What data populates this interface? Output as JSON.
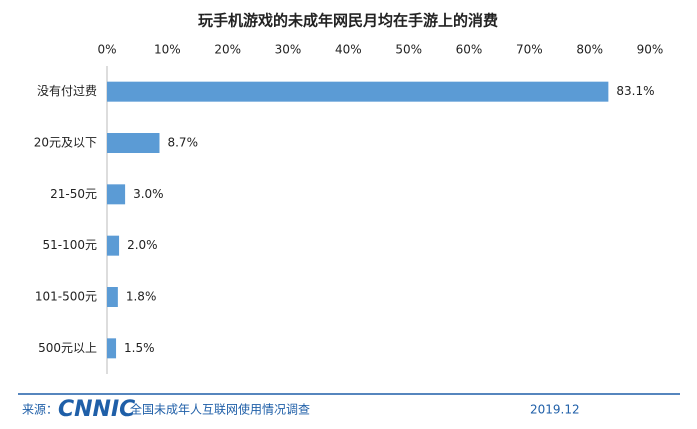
{
  "chart_data": {
    "type": "bar",
    "orientation": "horizontal",
    "title": "玩手机游戏的未成年网民月均在手游上的消费",
    "categories": [
      "没有付过费",
      "20元及以下",
      "21-50元",
      "51-100元",
      "101-500元",
      "500元以上"
    ],
    "values": [
      83.1,
      8.7,
      3.0,
      2.0,
      1.8,
      1.5
    ],
    "value_labels": [
      "83.1%",
      "8.7%",
      "3.0%",
      "2.0%",
      "1.8%",
      "1.5%"
    ],
    "color": "#5b9bd5",
    "xlim": [
      0,
      90
    ],
    "xticks": [
      {
        "value": 0,
        "label": "0%"
      },
      {
        "value": 10,
        "label": "10%"
      },
      {
        "value": 20,
        "label": "20%"
      },
      {
        "value": 30,
        "label": "30%"
      },
      {
        "value": 40,
        "label": "40%"
      },
      {
        "value": 50,
        "label": "50%"
      },
      {
        "value": 60,
        "label": "60%"
      },
      {
        "value": 70,
        "label": "70%"
      },
      {
        "value": 80,
        "label": "80%"
      },
      {
        "value": 90,
        "label": "90%"
      }
    ],
    "grid": false
  },
  "footer": {
    "source_label": "来源：",
    "logo": "CNNIC",
    "survey": "全国未成年人互联网使用情况调查",
    "date": "2019.12"
  }
}
